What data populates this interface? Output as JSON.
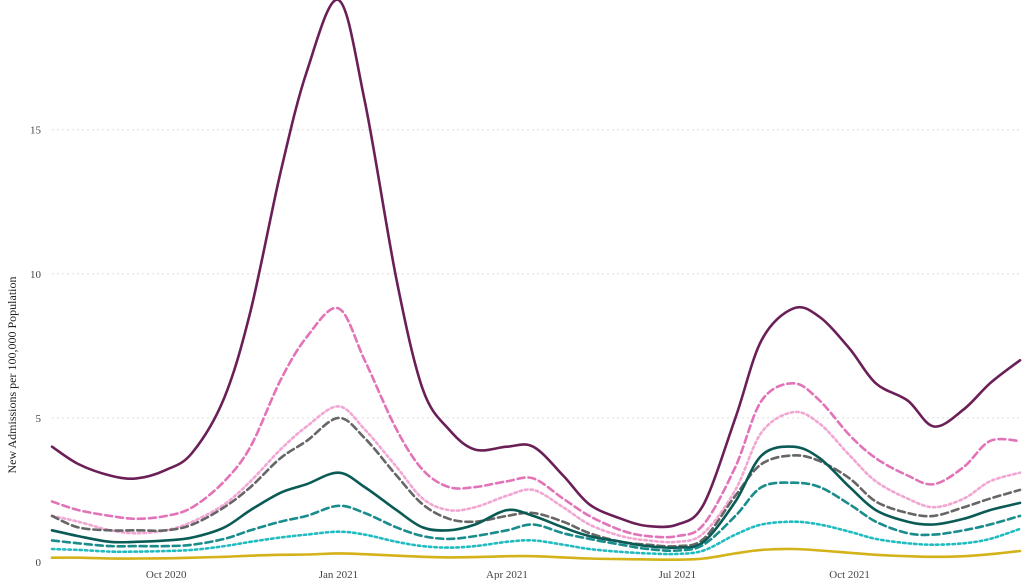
{
  "chart_data": {
    "type": "line",
    "title": "",
    "xlabel": "",
    "ylabel": "New Admissions per 100,000 Population",
    "xlim": [
      "2020-08-01",
      "2021-12-31"
    ],
    "ylim": [
      0,
      19.5
    ],
    "grid": {
      "y": true,
      "x": false
    },
    "legend": "none",
    "y_ticks": [
      0,
      5,
      10,
      15
    ],
    "x_ticks": [
      {
        "date": "2020-10-01",
        "label": "Oct 2020"
      },
      {
        "date": "2021-01-01",
        "label": "Jan 2021"
      },
      {
        "date": "2021-04-01",
        "label": "Apr 2021"
      },
      {
        "date": "2021-07-01",
        "label": "Jul 2021"
      },
      {
        "date": "2021-10-01",
        "label": "Oct 2021"
      }
    ],
    "x": [
      "2020-08-01",
      "2020-08-15",
      "2020-09-01",
      "2020-09-15",
      "2020-10-01",
      "2020-10-15",
      "2020-11-01",
      "2020-11-15",
      "2020-12-01",
      "2020-12-15",
      "2021-01-01",
      "2021-01-15",
      "2021-02-01",
      "2021-02-15",
      "2021-03-01",
      "2021-03-15",
      "2021-04-01",
      "2021-04-15",
      "2021-05-01",
      "2021-05-15",
      "2021-06-01",
      "2021-06-15",
      "2021-07-01",
      "2021-07-15",
      "2021-08-01",
      "2021-08-15",
      "2021-09-01",
      "2021-09-15",
      "2021-10-01",
      "2021-10-15",
      "2021-11-01",
      "2021-11-15",
      "2021-12-01",
      "2021-12-15",
      "2021-12-31"
    ],
    "series": [
      {
        "color": "#6b1f57",
        "dash": "solid",
        "values": [
          4.0,
          3.4,
          3.0,
          2.9,
          3.2,
          3.8,
          5.7,
          8.7,
          13.5,
          17.0,
          19.5,
          16.0,
          9.8,
          6.0,
          4.6,
          3.9,
          4.0,
          4.0,
          3.0,
          2.0,
          1.5,
          1.25,
          1.3,
          2.0,
          5.0,
          7.7,
          8.8,
          8.5,
          7.4,
          6.2,
          5.6,
          4.7,
          5.3,
          6.2,
          7.0
        ]
      },
      {
        "color": "#e373b8",
        "dash": "dashed",
        "values": [
          2.1,
          1.8,
          1.6,
          1.5,
          1.6,
          1.9,
          2.8,
          4.0,
          6.3,
          7.8,
          8.8,
          7.0,
          4.6,
          3.2,
          2.6,
          2.6,
          2.8,
          2.9,
          2.2,
          1.6,
          1.1,
          0.9,
          0.9,
          1.3,
          3.3,
          5.6,
          6.2,
          5.6,
          4.4,
          3.6,
          3.0,
          2.7,
          3.3,
          4.2,
          4.2
        ]
      },
      {
        "color": "#f2a6d3",
        "dash": "dotted",
        "values": [
          1.6,
          1.4,
          1.1,
          1.0,
          1.1,
          1.4,
          2.0,
          2.8,
          3.9,
          4.7,
          5.4,
          4.6,
          3.3,
          2.2,
          1.8,
          1.9,
          2.3,
          2.5,
          1.9,
          1.3,
          0.9,
          0.75,
          0.7,
          1.0,
          2.5,
          4.5,
          5.2,
          4.8,
          3.7,
          2.8,
          2.2,
          1.9,
          2.2,
          2.8,
          3.1
        ]
      },
      {
        "color": "#666666",
        "dash": "dashed",
        "values": [
          1.6,
          1.2,
          1.1,
          1.1,
          1.1,
          1.3,
          1.9,
          2.6,
          3.6,
          4.2,
          5.0,
          4.3,
          3.0,
          2.0,
          1.5,
          1.4,
          1.6,
          1.7,
          1.4,
          1.0,
          0.7,
          0.6,
          0.55,
          0.8,
          2.3,
          3.4,
          3.7,
          3.5,
          2.9,
          2.1,
          1.7,
          1.6,
          1.9,
          2.2,
          2.5
        ]
      },
      {
        "color": "#0a5a55",
        "dash": "solid",
        "values": [
          1.1,
          0.9,
          0.7,
          0.7,
          0.75,
          0.85,
          1.2,
          1.8,
          2.4,
          2.7,
          3.1,
          2.6,
          1.8,
          1.2,
          1.1,
          1.3,
          1.8,
          1.6,
          1.2,
          0.9,
          0.7,
          0.55,
          0.5,
          0.7,
          2.1,
          3.7,
          4.0,
          3.6,
          2.6,
          1.8,
          1.4,
          1.3,
          1.5,
          1.8,
          2.05
        ]
      },
      {
        "color": "#1a8c8c",
        "dash": "dashed",
        "values": [
          0.75,
          0.65,
          0.55,
          0.55,
          0.55,
          0.6,
          0.8,
          1.1,
          1.4,
          1.6,
          1.95,
          1.7,
          1.2,
          0.9,
          0.8,
          0.9,
          1.1,
          1.3,
          1.0,
          0.8,
          0.6,
          0.45,
          0.4,
          0.6,
          1.6,
          2.6,
          2.75,
          2.6,
          2.0,
          1.4,
          1.0,
          0.95,
          1.1,
          1.3,
          1.6
        ]
      },
      {
        "color": "#22bcc0",
        "dash": "dotted",
        "values": [
          0.45,
          0.42,
          0.36,
          0.36,
          0.38,
          0.42,
          0.55,
          0.7,
          0.85,
          0.95,
          1.05,
          0.95,
          0.7,
          0.55,
          0.5,
          0.55,
          0.7,
          0.75,
          0.6,
          0.45,
          0.35,
          0.3,
          0.28,
          0.4,
          0.95,
          1.3,
          1.4,
          1.3,
          1.05,
          0.8,
          0.65,
          0.6,
          0.65,
          0.8,
          1.15
        ]
      },
      {
        "color": "#d4b21a",
        "dash": "solid",
        "values": [
          0.15,
          0.15,
          0.12,
          0.12,
          0.13,
          0.15,
          0.18,
          0.22,
          0.25,
          0.26,
          0.3,
          0.27,
          0.22,
          0.18,
          0.16,
          0.17,
          0.2,
          0.2,
          0.16,
          0.12,
          0.1,
          0.09,
          0.08,
          0.12,
          0.3,
          0.42,
          0.45,
          0.4,
          0.32,
          0.25,
          0.2,
          0.18,
          0.2,
          0.27,
          0.38
        ]
      }
    ]
  }
}
